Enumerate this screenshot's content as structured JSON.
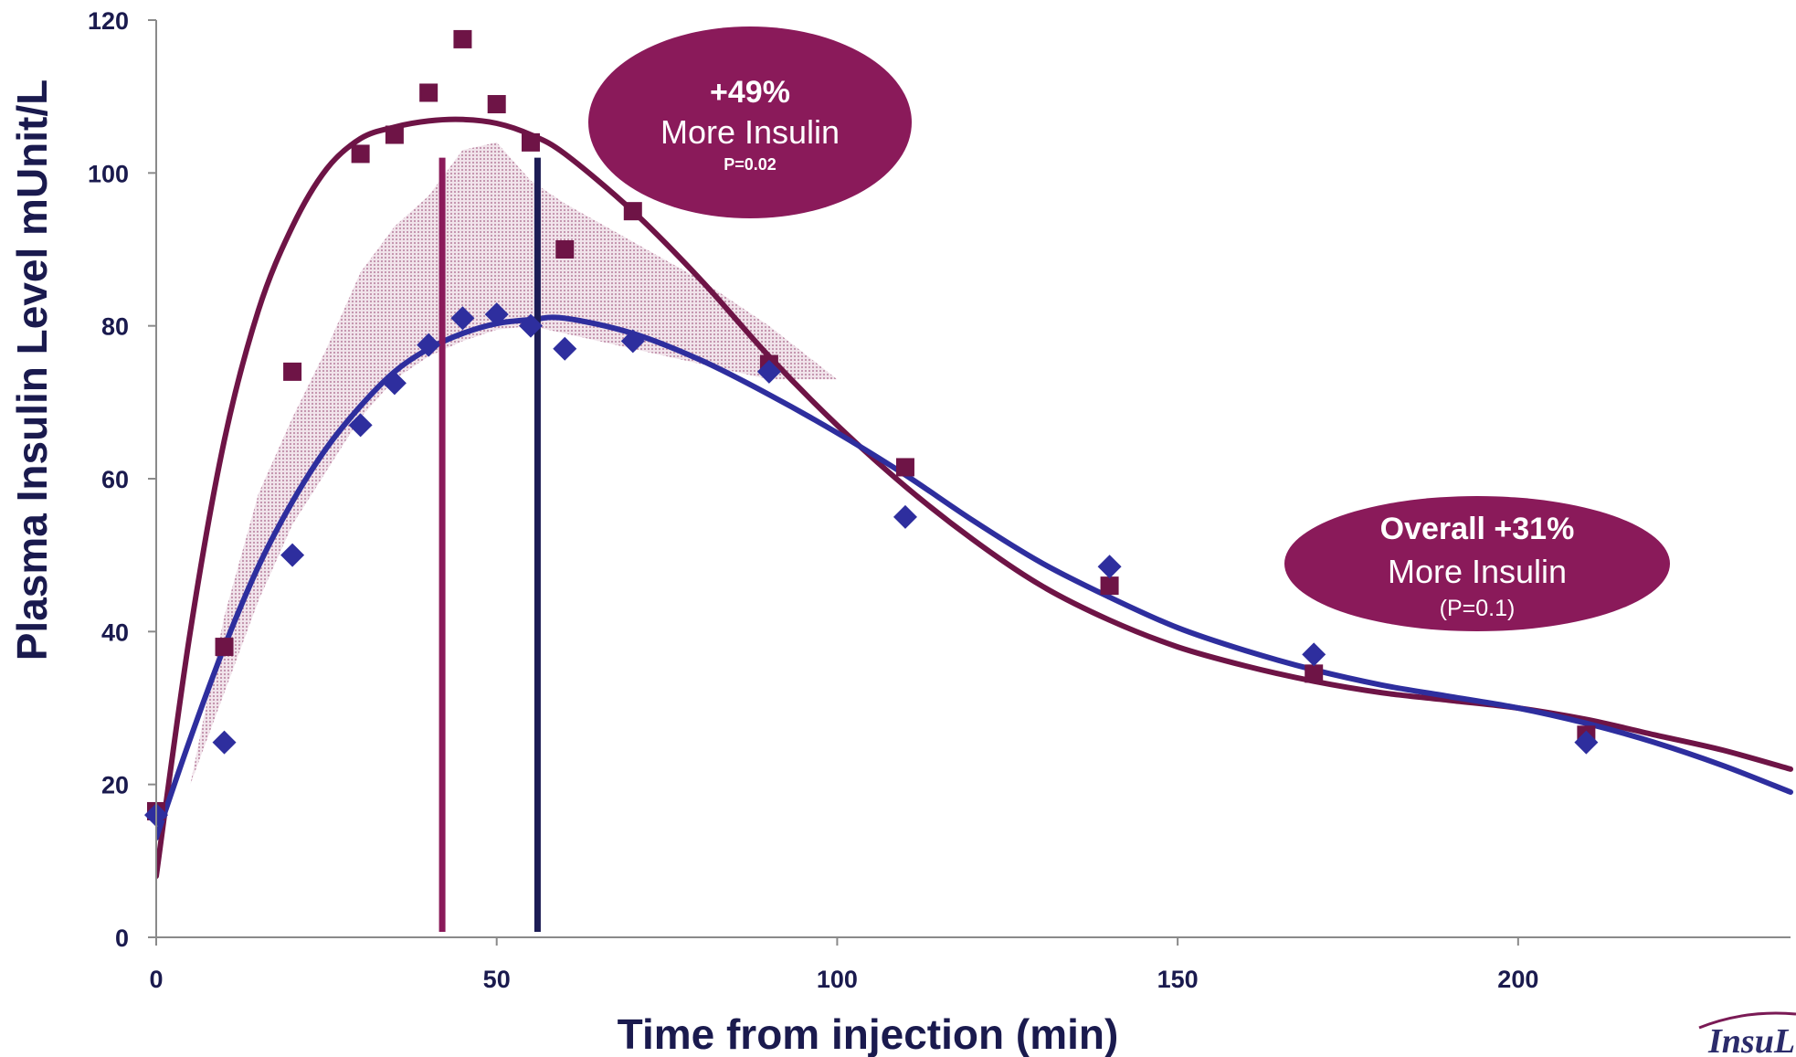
{
  "chart_data": {
    "type": "scatter",
    "xlabel": "Time from injection (min)",
    "ylabel": "Plasma Insulin Level  mUnit/L",
    "xlim": [
      0,
      240
    ],
    "ylim": [
      0,
      120
    ],
    "x_ticks": [
      0,
      50,
      100,
      150,
      200
    ],
    "y_ticks": [
      0,
      20,
      40,
      60,
      80,
      100,
      120
    ],
    "grid": false,
    "series": [
      {
        "marker": "square",
        "color": "#6e1446",
        "points": [
          {
            "x": 0,
            "y": 16.5
          },
          {
            "x": 10,
            "y": 38
          },
          {
            "x": 20,
            "y": 74
          },
          {
            "x": 30,
            "y": 102.5
          },
          {
            "x": 35,
            "y": 105
          },
          {
            "x": 40,
            "y": 110.5
          },
          {
            "x": 45,
            "y": 117.5
          },
          {
            "x": 50,
            "y": 109
          },
          {
            "x": 55,
            "y": 104
          },
          {
            "x": 60,
            "y": 90
          },
          {
            "x": 70,
            "y": 95
          },
          {
            "x": 90,
            "y": 75
          },
          {
            "x": 110,
            "y": 61.5
          },
          {
            "x": 140,
            "y": 46
          },
          {
            "x": 170,
            "y": 34.5
          },
          {
            "x": 210,
            "y": 26.5
          }
        ],
        "fit": [
          [
            0,
            8
          ],
          [
            5,
            40
          ],
          [
            10,
            65
          ],
          [
            15,
            82
          ],
          [
            20,
            93
          ],
          [
            25,
            100.5
          ],
          [
            30,
            104.5
          ],
          [
            35,
            106
          ],
          [
            40,
            106.8
          ],
          [
            45,
            107
          ],
          [
            50,
            106.5
          ],
          [
            55,
            105
          ],
          [
            60,
            102.5
          ],
          [
            70,
            95
          ],
          [
            80,
            86
          ],
          [
            90,
            76
          ],
          [
            100,
            67
          ],
          [
            110,
            59
          ],
          [
            120,
            52
          ],
          [
            130,
            46
          ],
          [
            140,
            41.5
          ],
          [
            150,
            38
          ],
          [
            160,
            35.5
          ],
          [
            170,
            33.5
          ],
          [
            180,
            32
          ],
          [
            190,
            31
          ],
          [
            200,
            30
          ],
          [
            210,
            28.5
          ],
          [
            220,
            26.5
          ],
          [
            230,
            24.5
          ],
          [
            240,
            22
          ]
        ],
        "peak_x": 42
      },
      {
        "marker": "diamond",
        "color": "#2e2e9e",
        "points": [
          {
            "x": 0,
            "y": 16
          },
          {
            "x": 10,
            "y": 25.5
          },
          {
            "x": 20,
            "y": 50
          },
          {
            "x": 30,
            "y": 67
          },
          {
            "x": 35,
            "y": 72.5
          },
          {
            "x": 40,
            "y": 77.5
          },
          {
            "x": 45,
            "y": 81
          },
          {
            "x": 50,
            "y": 81.5
          },
          {
            "x": 55,
            "y": 80
          },
          {
            "x": 60,
            "y": 77
          },
          {
            "x": 70,
            "y": 78
          },
          {
            "x": 90,
            "y": 74
          },
          {
            "x": 110,
            "y": 55
          },
          {
            "x": 140,
            "y": 48.5
          },
          {
            "x": 170,
            "y": 37
          },
          {
            "x": 210,
            "y": 25.5
          }
        ],
        "fit": [
          [
            0,
            13
          ],
          [
            5,
            26
          ],
          [
            10,
            38
          ],
          [
            15,
            48.5
          ],
          [
            20,
            57
          ],
          [
            25,
            64
          ],
          [
            30,
            69.5
          ],
          [
            35,
            74
          ],
          [
            40,
            77
          ],
          [
            45,
            79
          ],
          [
            50,
            80.3
          ],
          [
            55,
            80.8
          ],
          [
            60,
            81
          ],
          [
            70,
            79
          ],
          [
            80,
            75.5
          ],
          [
            90,
            71
          ],
          [
            100,
            66
          ],
          [
            110,
            60.5
          ],
          [
            120,
            54.5
          ],
          [
            130,
            49
          ],
          [
            140,
            44.5
          ],
          [
            150,
            40.5
          ],
          [
            160,
            37.5
          ],
          [
            170,
            35
          ],
          [
            180,
            33
          ],
          [
            190,
            31.5
          ],
          [
            200,
            30
          ],
          [
            210,
            28
          ],
          [
            220,
            25.5
          ],
          [
            230,
            22.5
          ],
          [
            240,
            19
          ]
        ],
        "peak_x": 56
      }
    ],
    "shaded_band": {
      "color": "#c79ab3",
      "upper": [
        [
          0,
          12
        ],
        [
          5,
          20
        ],
        [
          10,
          42
        ],
        [
          15,
          58
        ],
        [
          20,
          68
        ],
        [
          25,
          77
        ],
        [
          30,
          87
        ],
        [
          35,
          93
        ],
        [
          40,
          97
        ],
        [
          45,
          103
        ],
        [
          50,
          104
        ],
        [
          55,
          99
        ],
        [
          60,
          96
        ],
        [
          70,
          91
        ],
        [
          80,
          86
        ],
        [
          90,
          80
        ],
        [
          100,
          73
        ]
      ],
      "lower": [
        [
          100,
          73
        ],
        [
          90,
          73
        ],
        [
          80,
          75
        ],
        [
          70,
          77
        ],
        [
          60,
          79
        ],
        [
          55,
          80
        ],
        [
          50,
          79.5
        ],
        [
          45,
          78
        ],
        [
          40,
          76
        ],
        [
          35,
          73
        ],
        [
          30,
          68
        ],
        [
          25,
          61
        ],
        [
          20,
          54
        ],
        [
          15,
          44
        ],
        [
          10,
          32
        ],
        [
          5,
          20
        ],
        [
          0,
          12
        ]
      ]
    },
    "annotations": [
      {
        "id": "early",
        "headline": "+49%",
        "line": "More Insulin",
        "note": "P=0.02",
        "fill": "#8a1a5a"
      },
      {
        "id": "overall",
        "headline": "Overall +31%",
        "line": "More Insulin",
        "note": "(P=0.1)",
        "fill": "#8a1a5a"
      }
    ]
  },
  "logo_text": "InsuLi"
}
